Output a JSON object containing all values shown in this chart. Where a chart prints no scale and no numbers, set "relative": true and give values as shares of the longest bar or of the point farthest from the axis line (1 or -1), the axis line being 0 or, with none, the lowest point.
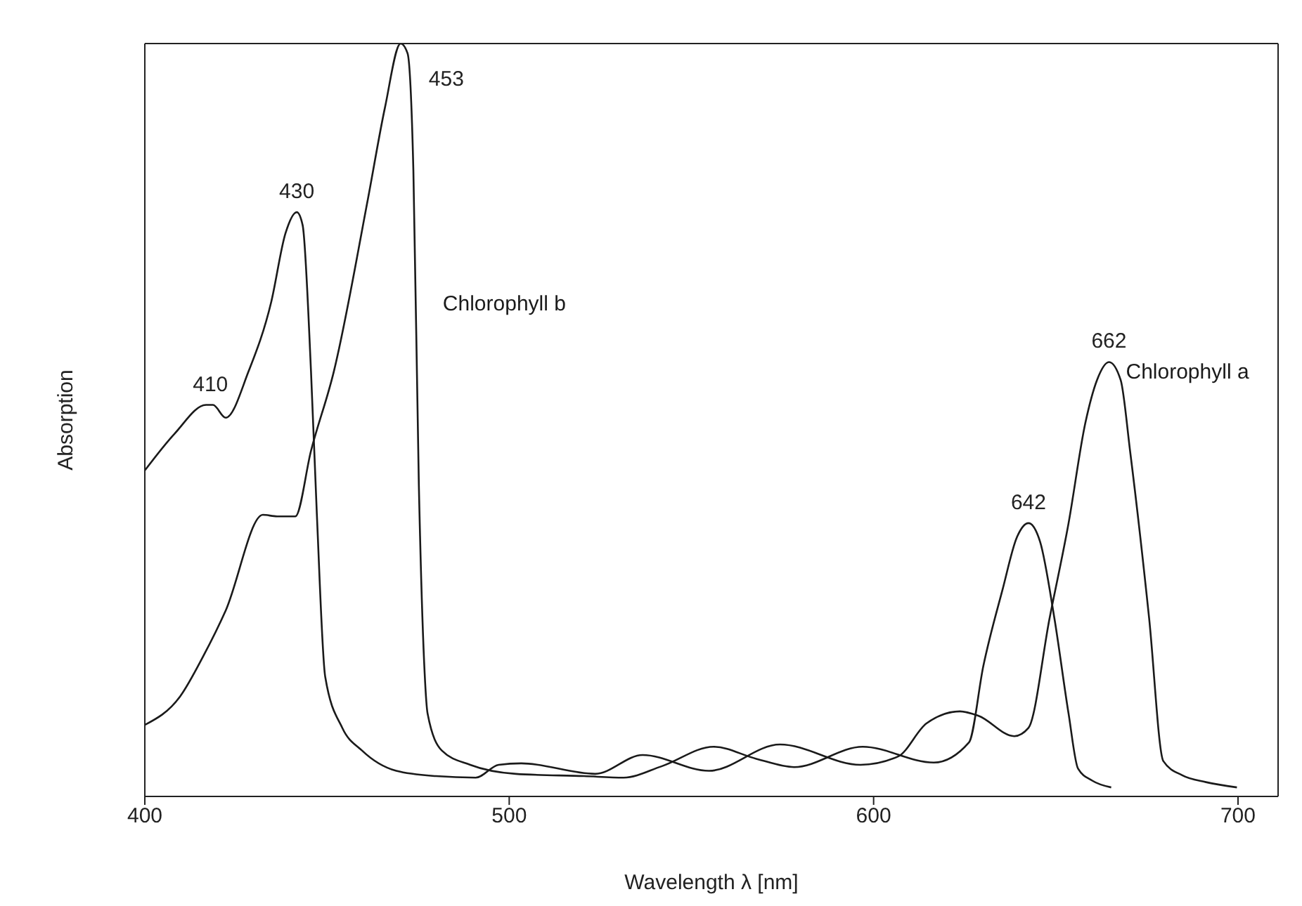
{
  "chart_data": {
    "type": "line",
    "xlabel": "Wavelength λ [nm]",
    "ylabel": "Absorption",
    "relative": true,
    "xlim": [
      400,
      711
    ],
    "xticks": [
      400,
      500,
      600,
      700
    ],
    "marker": "none",
    "line_style": "solid",
    "series": [
      {
        "name": "Chlorophyll a",
        "color": "#1a1a1a",
        "x": [
          400,
          408.2,
          416.8,
          418.7,
          422.2,
          428.5,
          434.7,
          438.6,
          441.7,
          443.3,
          445.6,
          447.2,
          449.5,
          454.2,
          459.6,
          469,
          479.9,
          490.8,
          497.1,
          503.3,
          523.6,
          536.6,
          554.8,
          574.3,
          596.4,
          606.7,
          614.5,
          623.7,
          628.8,
          638.6,
          642.5,
          648.3,
          653.5,
          658.1,
          661.3,
          664.6,
          667.8,
          670.4,
          675.6,
          679.5,
          684.7,
          691.2,
          699.7
        ],
        "values": [
          0.433,
          0.482,
          0.52,
          0.52,
          0.503,
          0.565,
          0.657,
          0.748,
          0.776,
          0.759,
          0.565,
          0.376,
          0.159,
          0.091,
          0.061,
          0.034,
          0.027,
          0.025,
          0.042,
          0.044,
          0.03,
          0.055,
          0.034,
          0.069,
          0.042,
          0.053,
          0.097,
          0.113,
          0.107,
          0.08,
          0.091,
          0.237,
          0.363,
          0.496,
          0.553,
          0.577,
          0.553,
          0.458,
          0.237,
          0.047,
          0.028,
          0.019,
          0.012
        ]
      },
      {
        "name": "Chlorophyll b",
        "color": "#1a1a1a",
        "x": [
          400,
          409.7,
          416,
          422.2,
          432.4,
          436.3,
          441.3,
          445.6,
          451.9,
          461.2,
          465.9,
          470.2,
          472.1,
          473.7,
          475.2,
          476.8,
          477.6,
          481.5,
          489.3,
          501.8,
          520.5,
          531.4,
          541.8,
          556.1,
          567.8,
          578.2,
          597,
          616.5,
          626.2,
          630.1,
          635.4,
          639.3,
          642.5,
          645.7,
          649.6,
          653.5,
          656.1,
          660,
          665.2
        ],
        "values": [
          0.095,
          0.133,
          0.186,
          0.247,
          0.374,
          0.372,
          0.372,
          0.459,
          0.565,
          0.793,
          0.915,
          1,
          0.987,
          0.831,
          0.414,
          0.163,
          0.11,
          0.061,
          0.042,
          0.03,
          0.027,
          0.025,
          0.04,
          0.066,
          0.05,
          0.039,
          0.066,
          0.045,
          0.072,
          0.173,
          0.275,
          0.344,
          0.363,
          0.338,
          0.237,
          0.11,
          0.037,
          0.021,
          0.012
        ]
      }
    ],
    "annotations": [
      {
        "text": "410",
        "x": 418,
        "y": 0.52
      },
      {
        "text": "430",
        "x": 441.7,
        "y": 0.776
      },
      {
        "text": "453",
        "x": 470.2,
        "y": 1
      },
      {
        "text": "642",
        "x": 642.5,
        "y": 0.363
      },
      {
        "text": "662",
        "x": 664.6,
        "y": 0.577
      }
    ]
  }
}
